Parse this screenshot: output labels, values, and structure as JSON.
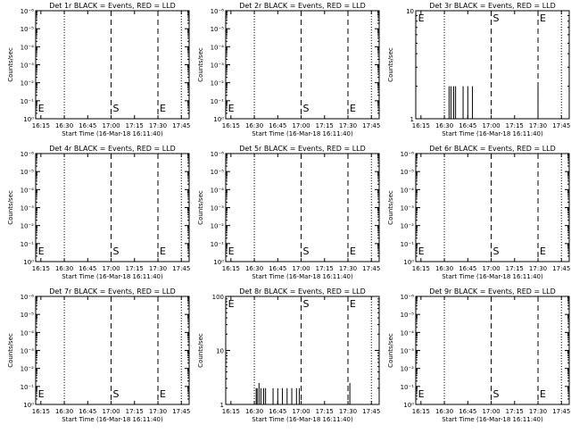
{
  "colors": {
    "background": "#ffffff",
    "events": "#000000",
    "lld": "#ff0000"
  },
  "chart_data": [
    {
      "panel": 1,
      "type": "line",
      "title": "Det 1r BLACK = Events, RED = LLD",
      "ylabel": "Counts/sec",
      "xlabel": "Start Time (16-Mar-18 16:11:40)",
      "x_ticks": [
        "16:15",
        "16:30",
        "16:45",
        "17:00",
        "17:15",
        "17:30",
        "17:45"
      ],
      "y_scale": "log",
      "y_ticks": [
        "10⁰",
        "10⁻¹",
        "10⁻²",
        "10⁻³",
        "10⁻⁴",
        "10⁻⁵",
        "10⁻⁶"
      ],
      "markers": [
        "E",
        "S",
        "E"
      ],
      "bursts": []
    },
    {
      "panel": 2,
      "type": "line",
      "title": "Det 2r BLACK = Events, RED = LLD",
      "ylabel": "Counts/sec",
      "xlabel": "Start Time (16-Mar-18 16:11:40)",
      "x_ticks": [
        "16:15",
        "16:30",
        "16:45",
        "17:00",
        "17:15",
        "17:30",
        "17:45"
      ],
      "y_scale": "log",
      "y_ticks": [
        "10⁰",
        "10⁻¹",
        "10⁻²",
        "10⁻³",
        "10⁻⁴",
        "10⁻⁵",
        "10⁻⁶"
      ],
      "markers": [
        "E",
        "S",
        "E"
      ],
      "bursts": []
    },
    {
      "panel": 3,
      "type": "line",
      "title": "Det 3r BLACK = Events, RED = LLD",
      "ylabel": "Counts/sec",
      "xlabel": "Start Time (16-Mar-18 16:11:40)",
      "x_ticks": [
        "16:15",
        "16:30",
        "16:45",
        "17:00",
        "17:15",
        "17:30",
        "17:45"
      ],
      "y_scale": "log",
      "y_ticks": [
        "1",
        "10"
      ],
      "markers": [
        "E",
        "S",
        "E"
      ],
      "bursts": [
        [
          16.55,
          2
        ],
        [
          16.57,
          2
        ],
        [
          16.6,
          2
        ],
        [
          16.62,
          2
        ],
        [
          16.7,
          2
        ],
        [
          16.75,
          2
        ],
        [
          16.8,
          2
        ],
        [
          17.5,
          2
        ]
      ]
    },
    {
      "panel": 4,
      "type": "line",
      "title": "Det 4r BLACK = Events, RED = LLD",
      "ylabel": "Counts/sec",
      "xlabel": "Start Time (16-Mar-18 16:11:40)",
      "x_ticks": [
        "16:15",
        "16:30",
        "16:45",
        "17:00",
        "17:15",
        "17:30",
        "17:45"
      ],
      "y_scale": "log",
      "y_ticks": [
        "10⁰",
        "10⁻¹",
        "10⁻²",
        "10⁻³",
        "10⁻⁴",
        "10⁻⁵",
        "10⁻⁶"
      ],
      "markers": [
        "E",
        "S",
        "E"
      ],
      "bursts": []
    },
    {
      "panel": 5,
      "type": "line",
      "title": "Det 5r BLACK = Events, RED = LLD",
      "ylabel": "Counts/sec",
      "xlabel": "Start Time (16-Mar-18 16:11:40)",
      "x_ticks": [
        "16:15",
        "16:30",
        "16:45",
        "17:00",
        "17:15",
        "17:30",
        "17:45"
      ],
      "y_scale": "log",
      "y_ticks": [
        "10⁰",
        "10⁻¹",
        "10⁻²",
        "10⁻³",
        "10⁻⁴",
        "10⁻⁵",
        "10⁻⁶"
      ],
      "markers": [
        "E",
        "S",
        "E"
      ],
      "bursts": []
    },
    {
      "panel": 6,
      "type": "line",
      "title": "Det 6r BLACK = Events, RED = LLD",
      "ylabel": "Counts/sec",
      "xlabel": "Start Time (16-Mar-18 16:11:40)",
      "x_ticks": [
        "16:15",
        "16:30",
        "16:45",
        "17:00",
        "17:15",
        "17:30",
        "17:45"
      ],
      "y_scale": "log",
      "y_ticks": [
        "10⁰",
        "10⁻¹",
        "10⁻²",
        "10⁻³",
        "10⁻⁴",
        "10⁻⁵",
        "10⁻⁶"
      ],
      "markers": [
        "E",
        "S",
        "E"
      ],
      "bursts": []
    },
    {
      "panel": 7,
      "type": "line",
      "title": "Det 7r BLACK = Events, RED = LLD",
      "ylabel": "Counts/sec",
      "xlabel": "Start Time (16-Mar-18 16:11:40)",
      "x_ticks": [
        "16:15",
        "16:30",
        "16:45",
        "17:00",
        "17:15",
        "17:30",
        "17:45"
      ],
      "y_scale": "log",
      "y_ticks": [
        "10⁰",
        "10⁻¹",
        "10⁻²",
        "10⁻³",
        "10⁻⁴",
        "10⁻⁵",
        "10⁻⁶"
      ],
      "markers": [
        "E",
        "S",
        "E"
      ],
      "bursts": []
    },
    {
      "panel": 8,
      "type": "line",
      "title": "Det 8r BLACK = Events, RED = LLD",
      "ylabel": "Counts/sec",
      "xlabel": "Start Time (16-Mar-18 16:11:40)",
      "x_ticks": [
        "16:15",
        "16:30",
        "16:45",
        "17:00",
        "17:15",
        "17:30",
        "17:45"
      ],
      "y_scale": "log",
      "y_ticks": [
        "1",
        "10",
        "100"
      ],
      "markers": [
        "E",
        "S",
        "E"
      ],
      "bursts": [
        [
          16.52,
          2
        ],
        [
          16.53,
          2
        ],
        [
          16.55,
          2.5
        ],
        [
          16.57,
          2
        ],
        [
          16.6,
          2
        ],
        [
          16.62,
          2
        ],
        [
          16.7,
          2
        ],
        [
          16.75,
          2
        ],
        [
          16.8,
          2
        ],
        [
          16.85,
          2
        ],
        [
          16.9,
          2
        ],
        [
          16.95,
          2
        ],
        [
          16.98,
          2
        ],
        [
          17.52,
          2.5
        ]
      ]
    },
    {
      "panel": 9,
      "type": "line",
      "title": "Det 9r BLACK = Events, RED = LLD",
      "ylabel": "Counts/sec",
      "xlabel": "Start Time (16-Mar-18 16:11:40)",
      "x_ticks": [
        "16:15",
        "16:30",
        "16:45",
        "17:00",
        "17:15",
        "17:30",
        "17:45"
      ],
      "y_scale": "log",
      "y_ticks": [
        "10⁰",
        "10⁻¹",
        "10⁻²",
        "10⁻³",
        "10⁻⁴",
        "10⁻⁵",
        "10⁻⁶"
      ],
      "markers": [
        "E",
        "S",
        "E"
      ],
      "bursts": []
    }
  ]
}
